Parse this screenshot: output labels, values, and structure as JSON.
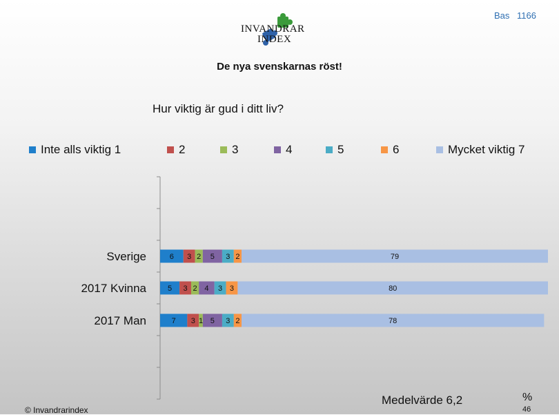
{
  "header": {
    "logo_line1": "INVANDRAR",
    "logo_line2": "INDEX",
    "bas_label": "Bas",
    "bas_value": "1166",
    "subtitle": "De nya svenskarnas röst!"
  },
  "footer": {
    "mean_label": "Medelvärde 6,2",
    "percent_symbol": "%",
    "percent_value": "46",
    "copyright": "© Invandrarindex"
  },
  "chart_data": {
    "type": "bar",
    "orientation": "horizontal",
    "stacked": true,
    "title": "Hur viktig är gud i ditt liv?",
    "xlabel": "",
    "ylabel": "",
    "xlim": [
      0,
      100
    ],
    "grid": false,
    "legend_position": "top",
    "categories": [
      "Sverige",
      "2017 Kvinna",
      "2017 Man"
    ],
    "series": [
      {
        "name": "Inte alls viktig 1",
        "color": "#1f7fcb",
        "values": [
          6,
          5,
          7
        ]
      },
      {
        "name": "2",
        "color": "#c0504d",
        "values": [
          3,
          3,
          3
        ]
      },
      {
        "name": "3",
        "color": "#9bbb59",
        "values": [
          2,
          2,
          1
        ]
      },
      {
        "name": "4",
        "color": "#8064a2",
        "values": [
          5,
          4,
          5
        ]
      },
      {
        "name": "5",
        "color": "#4bacc6",
        "values": [
          3,
          3,
          3
        ]
      },
      {
        "name": "6",
        "color": "#f79646",
        "values": [
          2,
          3,
          2
        ]
      },
      {
        "name": "Mycket viktig 7",
        "color": "#a9bfe3",
        "values": [
          79,
          80,
          78
        ]
      }
    ]
  }
}
